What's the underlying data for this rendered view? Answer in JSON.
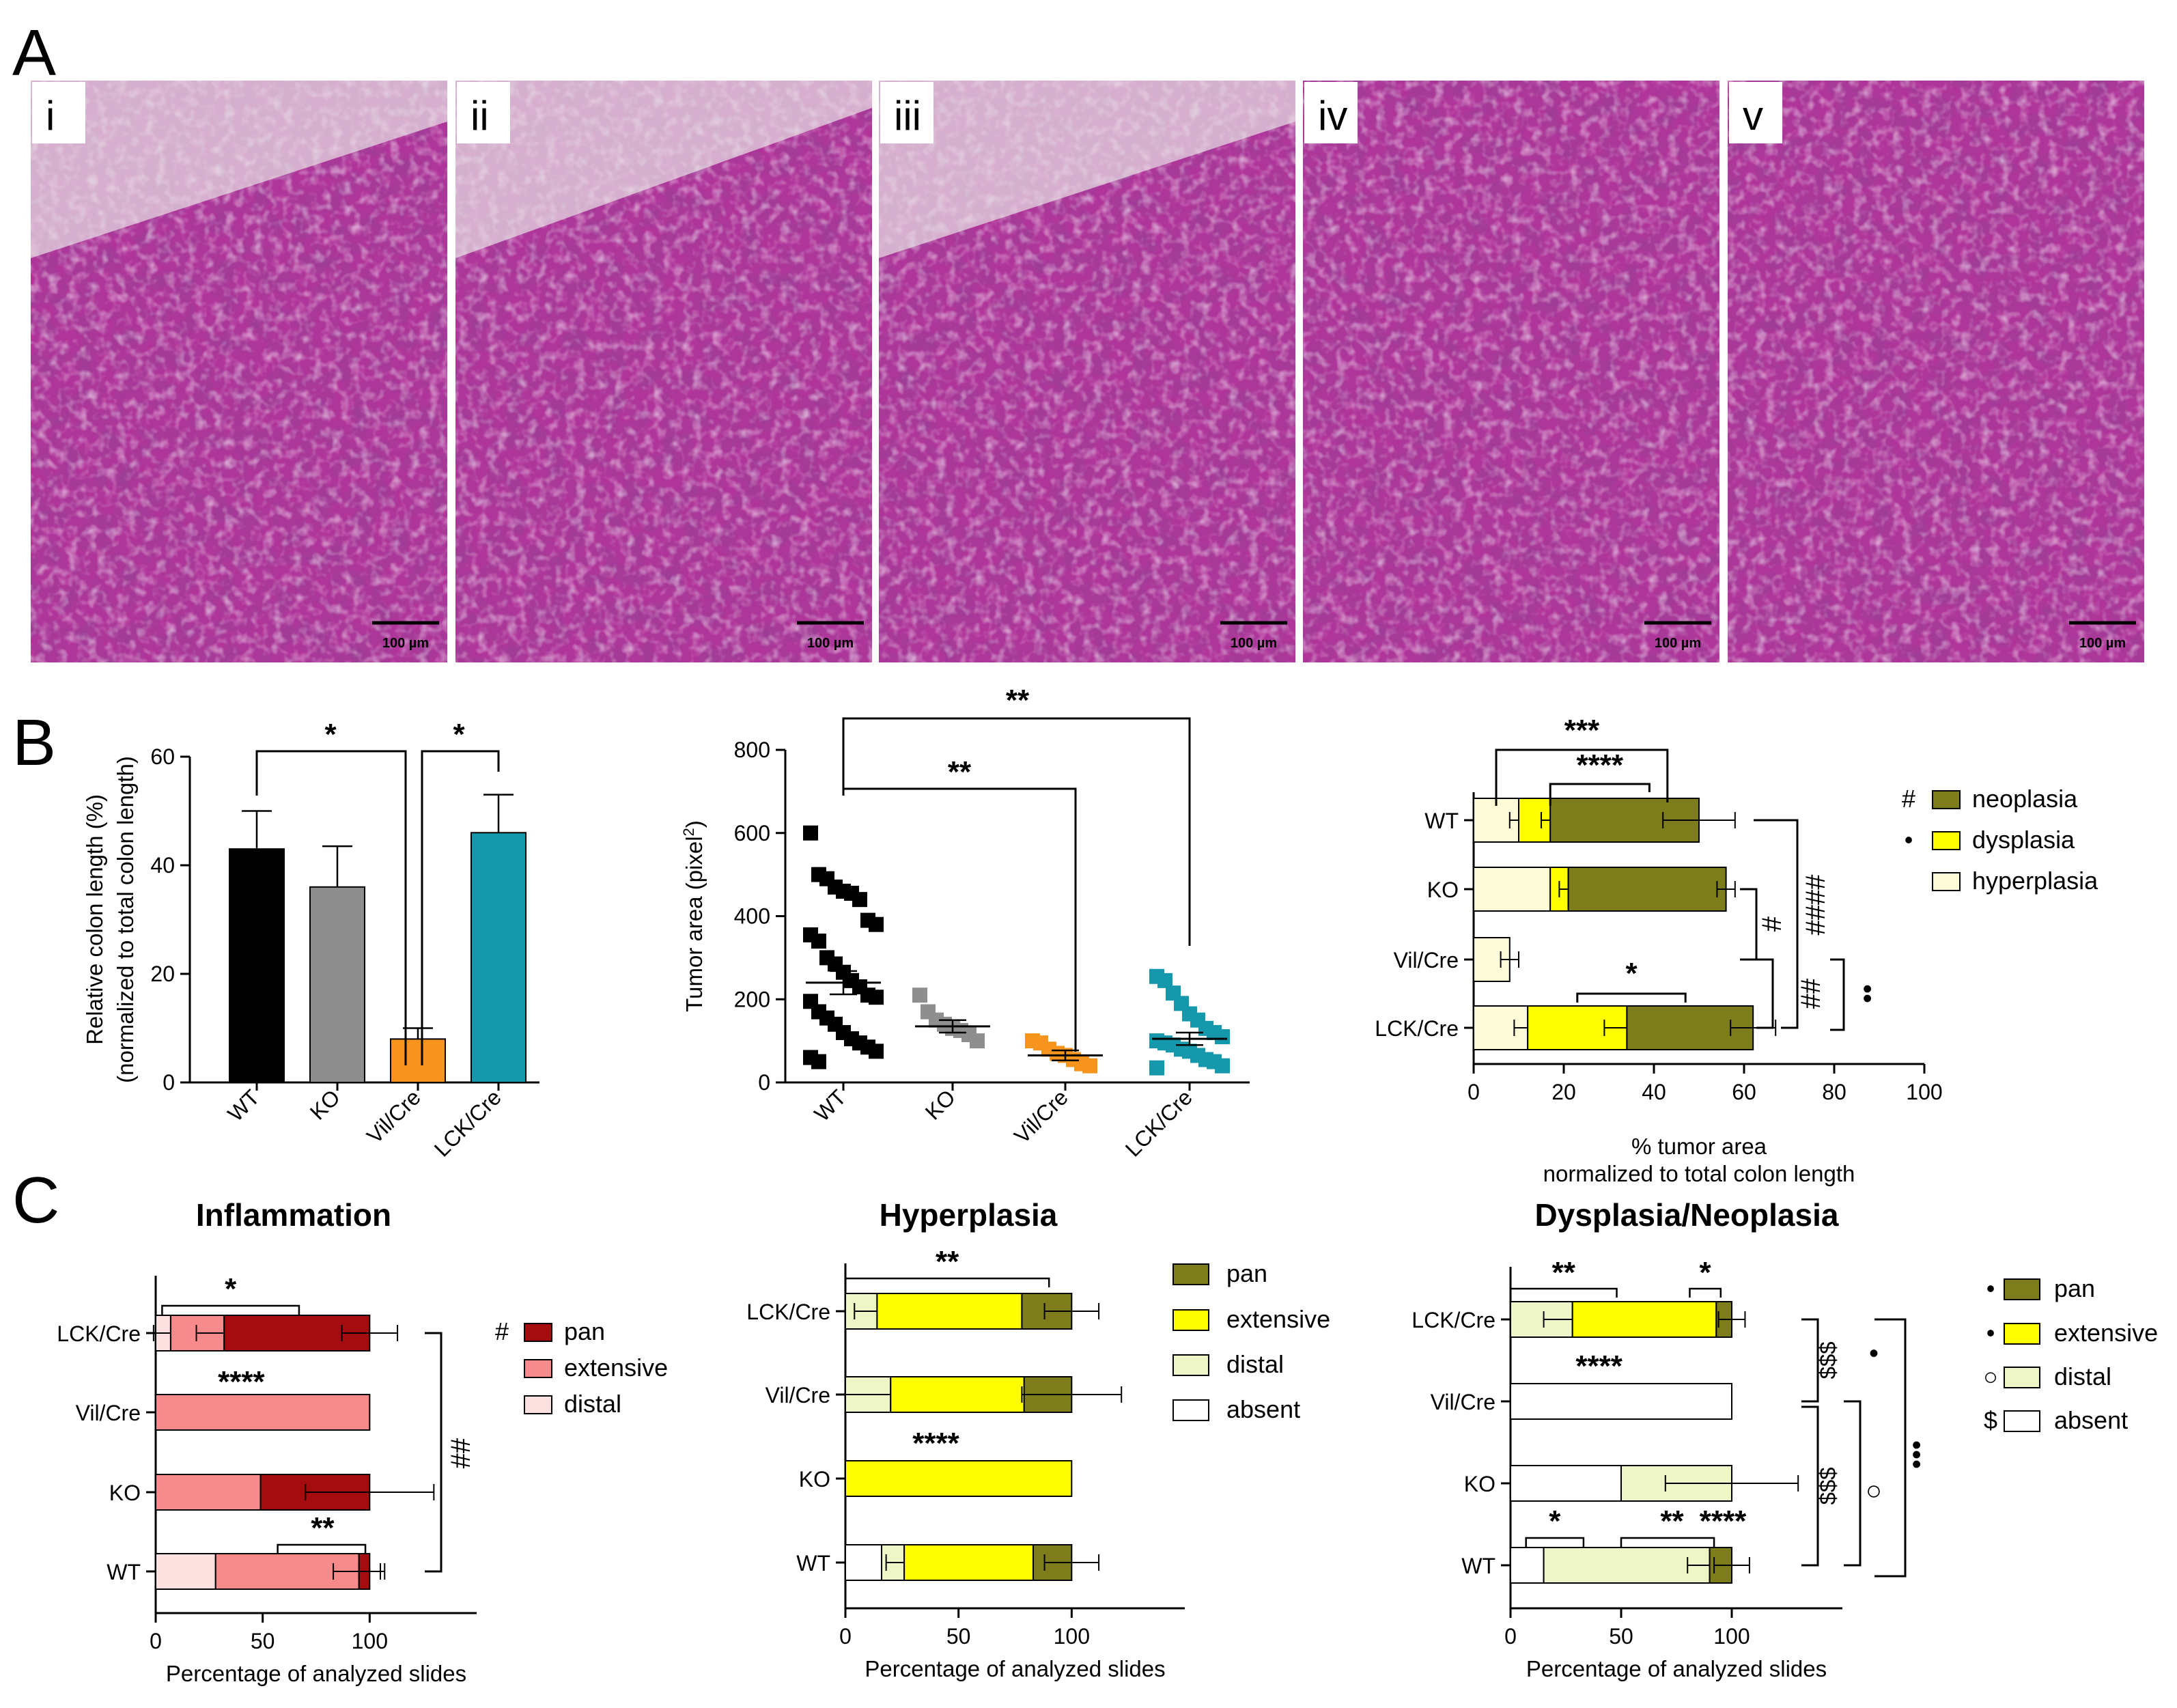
{
  "panels": {
    "A": "A",
    "B": "B",
    "C": "C"
  },
  "micrographs": [
    {
      "label": "i",
      "scale": "100 µm"
    },
    {
      "label": "ii",
      "scale": "100 µm"
    },
    {
      "label": "iii",
      "scale": "100 µm"
    },
    {
      "label": "iv",
      "scale": "100 µm"
    },
    {
      "label": "v",
      "scale": "100 µm"
    }
  ],
  "colors": {
    "wt": "#000000",
    "ko": "#8e8e8e",
    "vil": "#f7941d",
    "lck": "#1598ac",
    "neoplasia": "#7d7d1c",
    "dysplasia": "#ffff00",
    "hyperplasia": "#fdfbd8",
    "inf_pan": "#a50c10",
    "inf_extensive": "#f78a8a",
    "inf_distal": "#fce1e1",
    "pan": "#7d7d1c",
    "extensive": "#ffff00",
    "distal": "#eef6c8",
    "absent": "#ffffff",
    "tissue": "#b0359a"
  },
  "chart_data": [
    {
      "id": "colon_length",
      "type": "bar",
      "ylabel": "Relative colon length (%)",
      "ylabel2": "(normalized to total colon length)",
      "categories": [
        "WT",
        "KO",
        "Vil/Cre",
        "LCK/Cre"
      ],
      "values": [
        43,
        36,
        8,
        46
      ],
      "errors": [
        7,
        7.5,
        2,
        7
      ],
      "ylim": [
        0,
        60
      ],
      "yticks": [
        0,
        20,
        40,
        60
      ],
      "significance": [
        {
          "from": "WT",
          "to": "Vil/Cre",
          "label": "*"
        },
        {
          "from": "Vil/Cre",
          "to": "LCK/Cre",
          "label": "*"
        }
      ]
    },
    {
      "id": "tumor_area",
      "type": "scatter",
      "ylabel": "Tumor area (pixel",
      "ylabel_sup": "2",
      "ylabel_end": ")",
      "categories": [
        "WT",
        "KO",
        "Vil/Cre",
        "LCK/Cre"
      ],
      "ylim": [
        0,
        800
      ],
      "yticks": [
        0,
        200,
        400,
        600,
        800
      ],
      "means": [
        240,
        135,
        65,
        105
      ],
      "sems": [
        28,
        15,
        12,
        15
      ],
      "points": [
        [
          600,
          500,
          490,
          470,
          460,
          455,
          440,
          390,
          380,
          355,
          340,
          300,
          285,
          265,
          245,
          230,
          210,
          205,
          195,
          170,
          155,
          140,
          120,
          105,
          95,
          85,
          75,
          60,
          50
        ],
        [
          210,
          170,
          150,
          140,
          130,
          125,
          115,
          100
        ],
        [
          100,
          95,
          80,
          70,
          65,
          55,
          45,
          40
        ],
        [
          255,
          245,
          215,
          190,
          165,
          150,
          130,
          120,
          110,
          100,
          95,
          90,
          80,
          75,
          65,
          55,
          50,
          40,
          35
        ]
      ],
      "significance": [
        {
          "from": "WT",
          "to": "LCK/Cre",
          "label": "**"
        },
        {
          "from": "WT",
          "to": "Vil/Cre",
          "label": "**"
        }
      ]
    },
    {
      "id": "tumor_percent",
      "type": "bar",
      "orientation": "horizontal",
      "stacked": true,
      "xlabel": "% tumor area",
      "xlabel2": "normalized to total colon length",
      "categories": [
        "WT",
        "KO",
        "Vil/Cre",
        "LCK/Cre"
      ],
      "xlim": [
        0,
        100
      ],
      "xticks": [
        0,
        20,
        40,
        60,
        80,
        100
      ],
      "series": [
        {
          "name": "hyperplasia",
          "values": [
            10,
            17,
            8,
            12
          ],
          "errors": [
            2,
            0,
            2,
            3
          ]
        },
        {
          "name": "dysplasia",
          "values": [
            7,
            4,
            0,
            22
          ],
          "errors": [
            2,
            2,
            0,
            5
          ]
        },
        {
          "name": "neoplasia",
          "values": [
            33,
            35,
            0,
            28
          ],
          "errors": [
            8,
            2,
            0,
            5
          ]
        }
      ],
      "legend_markers": [
        "#",
        "•",
        ""
      ],
      "significance_bars": [
        {
          "label": "***",
          "x1": 5,
          "x2": 42
        },
        {
          "label": "****",
          "x1": 17,
          "x2": 38
        },
        {
          "label": "*",
          "x1": 23,
          "x2": 47
        }
      ],
      "right_brackets": [
        "####",
        "#",
        "##",
        "••"
      ]
    },
    {
      "id": "inflammation",
      "title": "Inflammation",
      "type": "bar",
      "orientation": "horizontal",
      "stacked": true,
      "xlabel": "Percentage of analyzed slides",
      "categories": [
        "LCK/Cre",
        "Vil/Cre",
        "KO",
        "WT"
      ],
      "xlim": [
        0,
        150
      ],
      "xticks": [
        0,
        50,
        100
      ],
      "series": [
        {
          "name": "distal",
          "values": [
            7,
            0,
            0,
            28
          ],
          "errors": [
            8,
            0,
            0,
            0
          ]
        },
        {
          "name": "extensive",
          "values": [
            25,
            100,
            49,
            67
          ],
          "errors": [
            13,
            0,
            0,
            12
          ]
        },
        {
          "name": "pan",
          "values": [
            68,
            0,
            51,
            5
          ],
          "errors": [
            13,
            0,
            30,
            5
          ]
        }
      ],
      "legend_markers": [
        "#",
        "",
        ""
      ],
      "stars": [
        "*",
        "****",
        "**"
      ],
      "right_brackets": [
        "##"
      ]
    },
    {
      "id": "hyperplasia",
      "title": "Hyperplasia",
      "type": "bar",
      "orientation": "horizontal",
      "stacked": true,
      "xlabel": "Percentage of analyzed slides",
      "categories": [
        "LCK/Cre",
        "Vil/Cre",
        "KO",
        "WT"
      ],
      "xlim": [
        0,
        150
      ],
      "xticks": [
        0,
        50,
        100
      ],
      "series": [
        {
          "name": "absent",
          "values": [
            0,
            0,
            0,
            16
          ],
          "errors": [
            0,
            0,
            0,
            0
          ]
        },
        {
          "name": "distal",
          "values": [
            14,
            20,
            0,
            10
          ],
          "errors": [
            10,
            20,
            0,
            8
          ]
        },
        {
          "name": "extensive",
          "values": [
            64,
            59,
            100,
            57
          ],
          "errors": [
            0,
            0,
            0,
            0
          ]
        },
        {
          "name": "pan",
          "values": [
            22,
            21,
            0,
            17
          ],
          "errors": [
            12,
            22,
            0,
            12
          ]
        }
      ],
      "stars": [
        "**",
        "****"
      ]
    },
    {
      "id": "dysplasia_neoplasia",
      "title": "Dysplasia/Neoplasia",
      "type": "bar",
      "orientation": "horizontal",
      "stacked": true,
      "xlabel": "Percentage of analyzed slides",
      "categories": [
        "LCK/Cre",
        "Vil/Cre",
        "KO",
        "WT"
      ],
      "xlim": [
        0,
        150
      ],
      "xticks": [
        0,
        50,
        100
      ],
      "series": [
        {
          "name": "absent",
          "values": [
            0,
            100,
            50,
            15
          ],
          "errors": [
            0,
            0,
            0,
            0
          ]
        },
        {
          "name": "distal",
          "values": [
            28,
            0,
            50,
            75
          ],
          "errors": [
            13,
            0,
            30,
            10
          ]
        },
        {
          "name": "extensive",
          "values": [
            65,
            0,
            0,
            0
          ],
          "errors": [
            0,
            0,
            0,
            0
          ]
        },
        {
          "name": "pan",
          "values": [
            7,
            0,
            0,
            10
          ],
          "errors": [
            6,
            0,
            0,
            8
          ]
        }
      ],
      "legend_markers": [
        "•",
        "•",
        "○",
        "$"
      ],
      "stars": [
        "**",
        "*",
        "****",
        "*",
        "**",
        "****"
      ],
      "right_brackets": [
        "$$$",
        "$$$",
        "•",
        "○",
        "•••"
      ]
    }
  ]
}
